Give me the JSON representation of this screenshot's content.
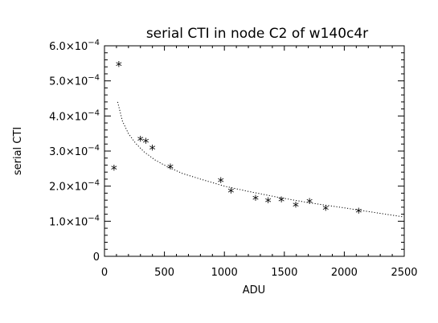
{
  "chart_data": {
    "type": "scatter",
    "title": "serial CTI in node C2 of w140c4r",
    "xlabel": "ADU",
    "ylabel": "serial CTI",
    "xlim": [
      0,
      2500
    ],
    "ylim": [
      0,
      0.0006
    ],
    "x_ticks": [
      0,
      500,
      1000,
      1500,
      2000,
      2500
    ],
    "x_tick_labels": [
      "0",
      "500",
      "1000",
      "1500",
      "2000",
      "2500"
    ],
    "y_ticks": [
      0,
      0.0001,
      0.0002,
      0.0003,
      0.0004,
      0.0005,
      0.0006
    ],
    "y_tick_labels": [
      {
        "mantissa": "0",
        "base": "",
        "exp": ""
      },
      {
        "mantissa": "1.0",
        "base": "×10",
        "exp": "−4"
      },
      {
        "mantissa": "2.0",
        "base": "×10",
        "exp": "−4"
      },
      {
        "mantissa": "3.0",
        "base": "×10",
        "exp": "−4"
      },
      {
        "mantissa": "4.0",
        "base": "×10",
        "exp": "−4"
      },
      {
        "mantissa": "5.0",
        "base": "×10",
        "exp": "−4"
      },
      {
        "mantissa": "6.0",
        "base": "×10",
        "exp": "−4"
      }
    ],
    "marker": "*",
    "grid": false,
    "points": [
      {
        "x": 80,
        "y": 0.000253
      },
      {
        "x": 120,
        "y": 0.000548
      },
      {
        "x": 300,
        "y": 0.000335
      },
      {
        "x": 345,
        "y": 0.00033
      },
      {
        "x": 400,
        "y": 0.00031
      },
      {
        "x": 550,
        "y": 0.000257
      },
      {
        "x": 970,
        "y": 0.000217
      },
      {
        "x": 1055,
        "y": 0.000188
      },
      {
        "x": 1260,
        "y": 0.000167
      },
      {
        "x": 1365,
        "y": 0.00016
      },
      {
        "x": 1475,
        "y": 0.000163
      },
      {
        "x": 1595,
        "y": 0.000148
      },
      {
        "x": 1710,
        "y": 0.000158
      },
      {
        "x": 1845,
        "y": 0.000138
      },
      {
        "x": 2120,
        "y": 0.00013
      }
    ],
    "fit_curve": {
      "style": "dotted",
      "x": [
        110,
        150,
        200,
        260,
        330,
        420,
        520,
        650,
        800,
        1000,
        1200,
        1450,
        1700,
        2000,
        2250,
        2500
      ],
      "y": [
        0.00044,
        0.000385,
        0.00035,
        0.000322,
        0.000298,
        0.000275,
        0.000256,
        0.000236,
        0.00022,
        0.0002,
        0.000185,
        0.000168,
        0.000153,
        0.000138,
        0.000125,
        0.000112
      ]
    }
  }
}
